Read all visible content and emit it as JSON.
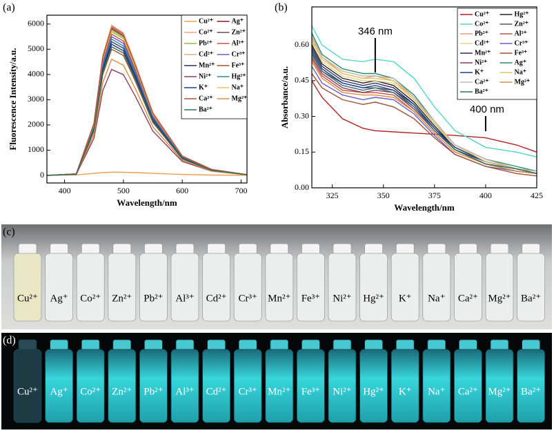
{
  "chart_data": [
    {
      "type": "line",
      "label": "(a)",
      "x_label": "Wavelength/nm",
      "y_label": "Fluorescence Intensity/a.u.",
      "x": [
        370,
        420,
        450,
        465,
        480,
        500,
        520,
        550,
        600,
        650,
        710
      ],
      "xlim": [
        370,
        710
      ],
      "ylim": [
        -300,
        6350
      ],
      "xticks": [
        400,
        500,
        600,
        700
      ],
      "yticks": [
        0,
        1000,
        2000,
        3000,
        4000,
        5000,
        6000
      ],
      "legend_position": "upper right",
      "series": [
        {
          "name": "Cu²⁺",
          "color": "#e8a04c",
          "values": [
            0,
            20,
            80,
            110,
            130,
            125,
            110,
            80,
            40,
            15,
            5
          ]
        },
        {
          "name": "Ag⁺",
          "color": "#8b1a1a",
          "values": [
            0,
            60,
            2070,
            4720,
            5900,
            5610,
            4430,
            2480,
            770,
            240,
            30
          ]
        },
        {
          "name": "Co²⁺",
          "color": "#f2a07b",
          "values": [
            0,
            60,
            2080,
            4760,
            5950,
            5650,
            4460,
            2500,
            770,
            240,
            30
          ]
        },
        {
          "name": "Zn²⁺",
          "color": "#555555",
          "values": [
            0,
            60,
            2030,
            4640,
            5800,
            5510,
            4350,
            2440,
            750,
            230,
            30
          ]
        },
        {
          "name": "Pb²⁺",
          "color": "#8fbc3f",
          "values": [
            0,
            60,
            2000,
            4560,
            5700,
            5420,
            4280,
            2390,
            740,
            230,
            30
          ]
        },
        {
          "name": "Al³⁺",
          "color": "#c0504d",
          "values": [
            0,
            60,
            1960,
            4480,
            5600,
            5320,
            4200,
            2350,
            730,
            220,
            30
          ]
        },
        {
          "name": "Cd²⁺",
          "color": "#d2b48c",
          "values": [
            0,
            60,
            2060,
            4700,
            5880,
            5590,
            4410,
            2470,
            760,
            240,
            30
          ]
        },
        {
          "name": "Cr³⁺",
          "color": "#6a5acd",
          "values": [
            0,
            60,
            1930,
            4400,
            5500,
            5230,
            4130,
            2310,
            720,
            220,
            30
          ]
        },
        {
          "name": "Mn²⁺",
          "color": "#2f2f5f",
          "values": [
            0,
            50,
            1820,
            4160,
            5200,
            4940,
            3900,
            2180,
            680,
            210,
            30
          ]
        },
        {
          "name": "Fe³⁺",
          "color": "#a0522d",
          "values": [
            0,
            50,
            1750,
            4000,
            5000,
            4750,
            3750,
            2100,
            650,
            200,
            30
          ]
        },
        {
          "name": "Ni²⁺",
          "color": "#8b3a62",
          "values": [
            0,
            40,
            1470,
            3360,
            4200,
            3990,
            3150,
            1760,
            550,
            170,
            20
          ]
        },
        {
          "name": "Hg²⁺",
          "color": "#2e8b8b",
          "values": [
            0,
            50,
            1890,
            4320,
            5400,
            5130,
            4050,
            2270,
            700,
            220,
            30
          ]
        },
        {
          "name": "K⁺",
          "color": "#1f3f8f",
          "values": [
            0,
            50,
            1860,
            4240,
            5300,
            5040,
            3980,
            2230,
            690,
            210,
            30
          ]
        },
        {
          "name": "Na⁺",
          "color": "#e6c25a",
          "values": [
            0,
            60,
            2010,
            4600,
            5750,
            5460,
            4310,
            2420,
            750,
            230,
            30
          ]
        },
        {
          "name": "Ca²⁺",
          "color": "#b04a3a",
          "values": [
            0,
            60,
            2050,
            4680,
            5850,
            5560,
            4390,
            2460,
            760,
            230,
            30
          ]
        },
        {
          "name": "Mg²⁺",
          "color": "#d98c3a",
          "values": [
            0,
            50,
            1610,
            3680,
            4600,
            4370,
            3450,
            1930,
            600,
            180,
            20
          ]
        },
        {
          "name": "Ba²⁺",
          "color": "#2f6f5f",
          "values": [
            0,
            50,
            1790,
            4080,
            5100,
            4850,
            3830,
            2140,
            660,
            200,
            30
          ]
        }
      ]
    },
    {
      "type": "line",
      "label": "(b)",
      "x_label": "Wavelength/nm",
      "y_label": "Absorbance/a.u.",
      "x": [
        315,
        320,
        330,
        340,
        346,
        355,
        365,
        375,
        385,
        400,
        415,
        425
      ],
      "xlim": [
        315,
        425
      ],
      "ylim": [
        0,
        0.76
      ],
      "xticks": [
        325,
        350,
        375,
        400,
        425
      ],
      "yticks": [
        {
          "value": 0,
          "label": "0.00"
        },
        0.15,
        {
          "value": 0.3,
          "label": "0.30"
        },
        0.45,
        {
          "value": 0.6,
          "label": "0.60"
        }
      ],
      "legend_position": "upper right",
      "annotations": [
        {
          "text": "346 nm",
          "x": 346
        },
        {
          "text": "400 nm",
          "x": 400
        }
      ],
      "series": [
        {
          "name": "Cu²⁺",
          "color": "#b22222",
          "values": [
            0.45,
            0.38,
            0.29,
            0.25,
            0.24,
            0.235,
            0.23,
            0.225,
            0.22,
            0.21,
            0.18,
            0.15
          ]
        },
        {
          "name": "Hg²⁺",
          "color": "#222222",
          "values": [
            0.6,
            0.52,
            0.46,
            0.44,
            0.45,
            0.43,
            0.36,
            0.26,
            0.17,
            0.11,
            0.08,
            0.07
          ]
        },
        {
          "name": "Co²⁺",
          "color": "#4fd6c4",
          "values": [
            0.68,
            0.6,
            0.54,
            0.53,
            0.54,
            0.53,
            0.46,
            0.34,
            0.24,
            0.17,
            0.15,
            0.13
          ]
        },
        {
          "name": "Zn²⁺",
          "color": "#555555",
          "values": [
            0.57,
            0.49,
            0.44,
            0.42,
            0.42,
            0.41,
            0.34,
            0.25,
            0.16,
            0.1,
            0.08,
            0.06
          ]
        },
        {
          "name": "Pb²⁺",
          "color": "#e8a070",
          "values": [
            0.63,
            0.55,
            0.48,
            0.46,
            0.47,
            0.45,
            0.38,
            0.27,
            0.18,
            0.12,
            0.08,
            0.07
          ]
        },
        {
          "name": "Al³⁺",
          "color": "#c0504d",
          "values": [
            0.54,
            0.47,
            0.41,
            0.4,
            0.4,
            0.39,
            0.32,
            0.23,
            0.15,
            0.1,
            0.07,
            0.06
          ]
        },
        {
          "name": "Cd²⁺",
          "color": "#e6d08a",
          "values": [
            0.61,
            0.53,
            0.47,
            0.45,
            0.45,
            0.44,
            0.37,
            0.27,
            0.17,
            0.11,
            0.08,
            0.07
          ]
        },
        {
          "name": "Cr³⁺",
          "color": "#6a5acd",
          "values": [
            0.51,
            0.44,
            0.39,
            0.37,
            0.38,
            0.37,
            0.31,
            0.22,
            0.14,
            0.09,
            0.07,
            0.06
          ]
        },
        {
          "name": "Mn²⁺",
          "color": "#2f2f5f",
          "values": [
            0.59,
            0.51,
            0.45,
            0.43,
            0.44,
            0.42,
            0.35,
            0.25,
            0.17,
            0.11,
            0.08,
            0.06
          ]
        },
        {
          "name": "Fe³⁺",
          "color": "#a0522d",
          "values": [
            0.48,
            0.42,
            0.37,
            0.35,
            0.36,
            0.34,
            0.29,
            0.21,
            0.14,
            0.09,
            0.06,
            0.05
          ]
        },
        {
          "name": "Ni²⁺",
          "color": "#8b3a62",
          "values": [
            0.55,
            0.48,
            0.42,
            0.4,
            0.41,
            0.4,
            0.33,
            0.24,
            0.16,
            0.1,
            0.07,
            0.06
          ]
        },
        {
          "name": "Ag⁺",
          "color": "#2e8b5b",
          "values": [
            0.65,
            0.56,
            0.5,
            0.48,
            0.48,
            0.46,
            0.39,
            0.28,
            0.18,
            0.12,
            0.09,
            0.07
          ]
        },
        {
          "name": "K⁺",
          "color": "#1f3f8f",
          "values": [
            0.58,
            0.5,
            0.44,
            0.42,
            0.43,
            0.41,
            0.35,
            0.25,
            0.16,
            0.11,
            0.08,
            0.06
          ]
        },
        {
          "name": "Na⁺",
          "color": "#e6c25a",
          "values": [
            0.62,
            0.54,
            0.48,
            0.46,
            0.46,
            0.45,
            0.37,
            0.27,
            0.18,
            0.11,
            0.08,
            0.07
          ]
        },
        {
          "name": "Ca²⁺",
          "color": "#b8b8b8",
          "values": [
            0.64,
            0.55,
            0.49,
            0.47,
            0.47,
            0.46,
            0.38,
            0.28,
            0.18,
            0.12,
            0.08,
            0.07
          ]
        },
        {
          "name": "Mg²⁺",
          "color": "#d98c3a",
          "values": [
            0.53,
            0.46,
            0.4,
            0.39,
            0.39,
            0.38,
            0.32,
            0.23,
            0.15,
            0.1,
            0.07,
            0.06
          ]
        },
        {
          "name": "Ba²⁺",
          "color": "#2f6f5f",
          "values": [
            0.56,
            0.49,
            0.43,
            0.41,
            0.42,
            0.4,
            0.34,
            0.24,
            0.16,
            0.1,
            0.08,
            0.06
          ]
        }
      ]
    }
  ],
  "photos": [
    {
      "label": "(c)",
      "vials": [
        "Cu²⁺",
        "Ag⁺",
        "Co²⁺",
        "Zn²⁺",
        "Pb²⁺",
        "Al³⁺",
        "Cd²⁺",
        "Cr³⁺",
        "Mn²⁺",
        "Fe³⁺",
        "Ni²⁺",
        "Hg²⁺",
        "K⁺",
        "Na⁺",
        "Ca²⁺",
        "Mg²⁺",
        "Ba²⁺"
      ]
    },
    {
      "label": "(d)",
      "vials": [
        "Cu²⁺",
        "Ag⁺",
        "Co²⁺",
        "Zn²⁺",
        "Pb²⁺",
        "Al³⁺",
        "Cd²⁺",
        "Cr³⁺",
        "Mn²⁺",
        "Fe³⁺",
        "Ni²⁺",
        "Hg²⁺",
        "K⁺",
        "Na⁺",
        "Ca²⁺",
        "Mg²⁺",
        "Ba²⁺"
      ]
    }
  ]
}
